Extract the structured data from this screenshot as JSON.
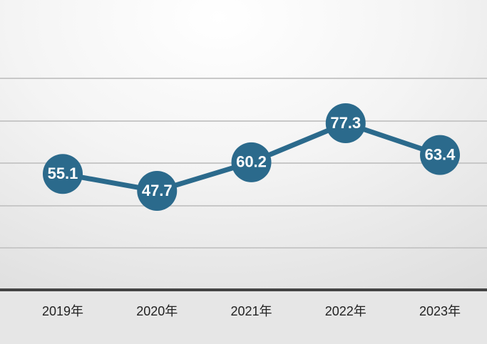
{
  "chart_data": {
    "type": "line",
    "categories": [
      "2019年",
      "2020年",
      "2021年",
      "2022年",
      "2023年"
    ],
    "values": [
      55.1,
      47.7,
      60.2,
      77.3,
      63.4
    ],
    "color": "#2b6a8c",
    "ylim": [
      0,
      120
    ]
  }
}
